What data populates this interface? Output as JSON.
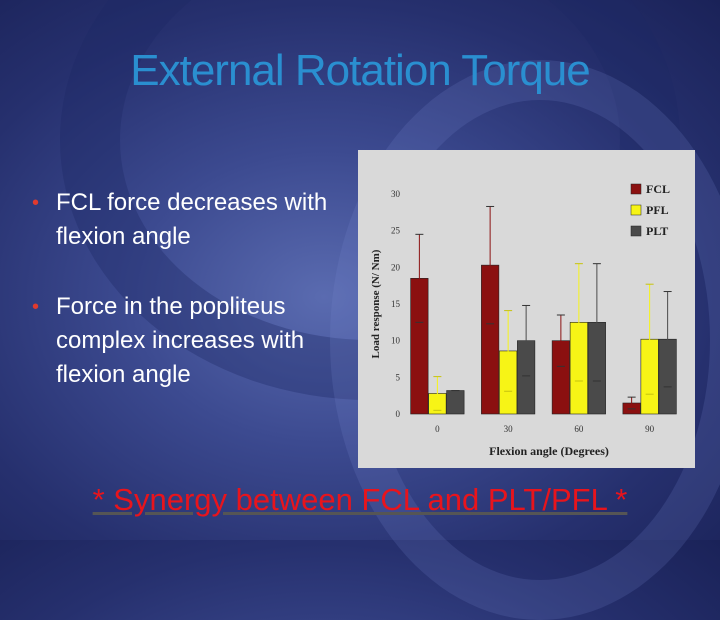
{
  "slide": {
    "title": "External Rotation Torque",
    "bullets": [
      "FCL force decreases with flexion angle",
      "Force in the popliteus complex increases with flexion angle"
    ],
    "footer": "* Synergy between FCL and PLT/PFL *",
    "bullet_icon": "bullet-dot",
    "colors": {
      "title": "#2a8fd0",
      "bullet": "#e03a2e",
      "footer": "#e8141c"
    }
  },
  "chart_data": {
    "type": "bar",
    "categories": [
      "0",
      "30",
      "60",
      "90"
    ],
    "series": [
      {
        "name": "FCL",
        "color": "#8b1010",
        "values": [
          18.5,
          20.3,
          10.0,
          1.5
        ],
        "errors": [
          6.0,
          8.0,
          3.5,
          0.8
        ]
      },
      {
        "name": "PFL",
        "color": "#f7f416",
        "values": [
          2.8,
          8.6,
          12.5,
          10.2
        ],
        "errors": [
          2.3,
          5.5,
          8.0,
          7.5
        ]
      },
      {
        "name": "PLT",
        "color": "#4a4a4a",
        "values": [
          3.2,
          10.0,
          12.5,
          10.2
        ],
        "errors": [
          0,
          4.8,
          8.0,
          6.5
        ]
      }
    ],
    "xlabel": "Flexion angle (Degrees)",
    "ylabel": "Load response (N/ Nm)",
    "ylim": [
      0,
      30
    ],
    "yticks": [
      "0",
      "5",
      "10",
      "15",
      "20",
      "25",
      "30"
    ],
    "legend": "top-right",
    "grid": false
  }
}
